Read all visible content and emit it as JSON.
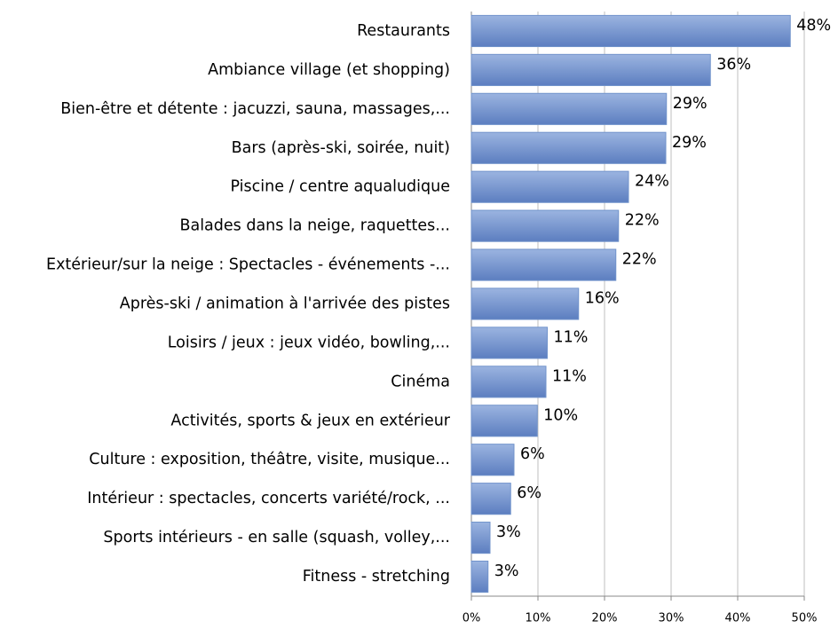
{
  "chart_data": {
    "type": "barh",
    "categories": [
      "Restaurants",
      "Ambiance village (et shopping)",
      "Bien-être et détente : jacuzzi, sauna, massages,...",
      "Bars (après-ski, soirée, nuit)",
      "Piscine / centre aqualudique",
      "Balades dans la neige, raquettes...",
      "Extérieur/sur la neige : Spectacles - événements -...",
      "Après-ski / animation à l'arrivée des pistes",
      "Loisirs / jeux : jeux vidéo, bowling,...",
      "Cinéma",
      "Activités, sports & jeux en extérieur",
      "Culture : exposition, théâtre, visite, musique...",
      "Intérieur : spectacles, concerts variété/rock, ...",
      "Sports intérieurs - en salle (squash, volley,...",
      "Fitness - stretching"
    ],
    "values": [
      47.9,
      35.9,
      29.3,
      29.2,
      23.6,
      22.1,
      21.7,
      16.1,
      11.4,
      11.2,
      9.9,
      6.4,
      5.9,
      2.8,
      2.5
    ],
    "value_labels": [
      "48%",
      "36%",
      "29%",
      "29%",
      "24%",
      "22%",
      "22%",
      "16%",
      "11%",
      "11%",
      "10%",
      "6%",
      "6%",
      "3%",
      "3%"
    ],
    "color": "#7193cb",
    "xlim": [
      0,
      50
    ],
    "xticks": [
      {
        "value": 0,
        "label": "0%"
      },
      {
        "value": 10,
        "label": "10%"
      },
      {
        "value": 20,
        "label": "20%"
      },
      {
        "value": 30,
        "label": "30%"
      },
      {
        "value": 40,
        "label": "40%"
      },
      {
        "value": 50,
        "label": "50%"
      }
    ],
    "grid": true
  }
}
